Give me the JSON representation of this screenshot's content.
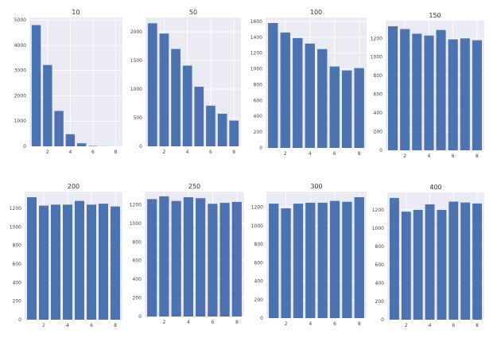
{
  "style": {
    "plot_bg": "#eaeaf2",
    "grid": "#ffffff",
    "bar": "#4c72b0"
  },
  "chart_data": [
    {
      "type": "bar",
      "title": "10",
      "x": [
        1,
        2,
        3,
        4,
        5,
        6,
        7,
        8
      ],
      "values": [
        4800,
        3220,
        1400,
        480,
        120,
        15,
        5,
        2
      ],
      "xlim": [
        0.4,
        8.6
      ],
      "ylim": [
        0,
        5100
      ],
      "xticks": [
        2,
        4,
        6,
        8
      ],
      "yticks": [
        0,
        1000,
        2000,
        3000,
        4000,
        5000
      ],
      "grid": true
    },
    {
      "type": "bar",
      "title": "50",
      "x": [
        1,
        2,
        3,
        4,
        5,
        6,
        7,
        8
      ],
      "values": [
        2150,
        1970,
        1700,
        1410,
        1040,
        710,
        570,
        450
      ],
      "xlim": [
        0.4,
        8.6
      ],
      "ylim": [
        0,
        2250
      ],
      "xticks": [
        2,
        4,
        6,
        8
      ],
      "yticks": [
        0,
        500,
        1000,
        1500,
        2000
      ],
      "grid": true
    },
    {
      "type": "bar",
      "title": "100",
      "x": [
        1,
        2,
        3,
        4,
        5,
        6,
        7,
        8
      ],
      "values": [
        1580,
        1460,
        1390,
        1320,
        1250,
        1030,
        980,
        1010
      ],
      "xlim": [
        0.4,
        8.6
      ],
      "ylim": [
        0,
        1650
      ],
      "xticks": [
        2,
        4,
        6,
        8
      ],
      "yticks": [
        0,
        200,
        400,
        600,
        800,
        1000,
        1200,
        1400,
        1600
      ],
      "grid": true
    },
    {
      "type": "bar",
      "title": "150",
      "x": [
        1,
        2,
        3,
        4,
        5,
        6,
        7,
        8
      ],
      "values": [
        1330,
        1300,
        1250,
        1230,
        1290,
        1190,
        1200,
        1180
      ],
      "xlim": [
        0.4,
        8.6
      ],
      "ylim": [
        0,
        1390
      ],
      "xticks": [
        2,
        4,
        6,
        8
      ],
      "yticks": [
        0,
        200,
        400,
        600,
        800,
        1000,
        1200
      ],
      "grid": true
    },
    {
      "type": "bar",
      "title": "200",
      "x": [
        1,
        2,
        3,
        4,
        5,
        6,
        7,
        8
      ],
      "values": [
        1320,
        1230,
        1240,
        1240,
        1280,
        1240,
        1250,
        1220
      ],
      "xlim": [
        0.4,
        8.6
      ],
      "ylim": [
        0,
        1380
      ],
      "xticks": [
        2,
        4,
        6,
        8
      ],
      "yticks": [
        0,
        200,
        400,
        600,
        800,
        1000,
        1200
      ],
      "grid": true
    },
    {
      "type": "bar",
      "title": "250",
      "x": [
        1,
        2,
        3,
        4,
        5,
        6,
        7,
        8
      ],
      "values": [
        1260,
        1290,
        1240,
        1280,
        1270,
        1210,
        1220,
        1230
      ],
      "xlim": [
        0.4,
        8.6
      ],
      "ylim": [
        0,
        1340
      ],
      "xticks": [
        2,
        4,
        6,
        8
      ],
      "yticks": [
        0,
        200,
        400,
        600,
        800,
        1000,
        1200
      ],
      "grid": true
    },
    {
      "type": "bar",
      "title": "300",
      "x": [
        1,
        2,
        3,
        4,
        5,
        6,
        7,
        8
      ],
      "values": [
        1240,
        1190,
        1240,
        1250,
        1250,
        1270,
        1260,
        1310
      ],
      "xlim": [
        0.4,
        8.6
      ],
      "ylim": [
        0,
        1370
      ],
      "xticks": [
        2,
        4,
        6,
        8
      ],
      "yticks": [
        0,
        200,
        400,
        600,
        800,
        1000,
        1200
      ],
      "grid": true
    },
    {
      "type": "bar",
      "title": "400",
      "x": [
        1,
        2,
        3,
        4,
        5,
        6,
        7,
        8
      ],
      "values": [
        1330,
        1180,
        1200,
        1260,
        1200,
        1290,
        1280,
        1270
      ],
      "xlim": [
        0.4,
        8.6
      ],
      "ylim": [
        0,
        1390
      ],
      "xticks": [
        2,
        4,
        6,
        8
      ],
      "yticks": [
        0,
        200,
        400,
        600,
        800,
        1000,
        1200
      ],
      "grid": true
    }
  ]
}
